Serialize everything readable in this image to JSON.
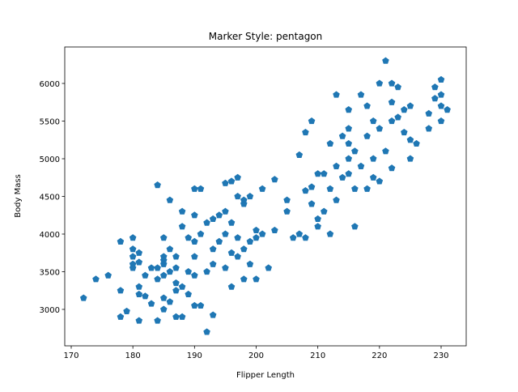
{
  "chart_data": {
    "type": "scatter",
    "title": "Marker Style: pentagon",
    "xlabel": "Flipper Length",
    "ylabel": "Body Mass",
    "marker": "pentagon",
    "color": "#1f77b4",
    "xlim": [
      168.95,
      234.07
    ],
    "ylim": [
      2516,
      6484
    ],
    "xticks": [
      170,
      180,
      190,
      200,
      210,
      220,
      230
    ],
    "yticks": [
      3000,
      3500,
      4000,
      4500,
      5000,
      5500,
      6000
    ],
    "x": [
      172,
      174,
      176,
      178,
      178,
      178,
      179,
      180,
      180,
      180,
      180,
      180,
      181,
      181,
      181,
      181,
      181,
      182,
      182,
      183,
      183,
      184,
      184,
      184,
      184,
      185,
      185,
      185,
      185,
      185,
      185,
      185,
      186,
      186,
      186,
      186,
      187,
      187,
      187,
      187,
      187,
      188,
      188,
      188,
      188,
      189,
      189,
      189,
      190,
      190,
      190,
      190,
      190,
      190,
      191,
      191,
      191,
      192,
      192,
      192,
      193,
      193,
      193,
      193,
      194,
      194,
      195,
      195,
      195,
      195,
      196,
      196,
      196,
      196,
      197,
      197,
      197,
      197,
      198,
      198,
      198,
      198,
      199,
      199,
      199,
      200,
      200,
      200,
      201,
      201,
      202,
      203,
      203,
      205,
      205,
      206,
      207,
      207,
      208,
      208,
      208,
      209,
      209,
      209,
      210,
      210,
      210,
      211,
      211,
      212,
      212,
      212,
      213,
      213,
      213,
      214,
      214,
      215,
      215,
      215,
      215,
      215,
      216,
      216,
      216,
      217,
      217,
      218,
      218,
      218,
      219,
      219,
      219,
      220,
      220,
      220,
      221,
      221,
      222,
      222,
      222,
      222,
      223,
      223,
      224,
      224,
      225,
      225,
      225,
      226,
      228,
      228,
      229,
      229,
      230,
      230,
      230,
      230,
      231
    ],
    "values": [
      3150,
      3400,
      3450,
      3250,
      3900,
      2900,
      2975,
      3800,
      3700,
      3600,
      3550,
      3950,
      3200,
      3625,
      3300,
      2850,
      3750,
      3175,
      3450,
      3550,
      3075,
      4650,
      3550,
      2850,
      3400,
      3700,
      3950,
      3600,
      3150,
      3000,
      3450,
      3650,
      4450,
      3800,
      3500,
      3100,
      3250,
      3550,
      3350,
      2900,
      3700,
      2900,
      3300,
      4300,
      4100,
      3950,
      3500,
      3200,
      4600,
      4250,
      3900,
      3450,
      3050,
      3700,
      4600,
      4000,
      3050,
      2700,
      4150,
      3500,
      4200,
      3800,
      2925,
      3600,
      4250,
      3900,
      4675,
      4300,
      4000,
      3550,
      4700,
      4150,
      3750,
      3300,
      4750,
      4500,
      3950,
      3700,
      4400,
      4450,
      3800,
      3400,
      4500,
      3900,
      3600,
      4050,
      3950,
      3400,
      4000,
      4600,
      3550,
      4725,
      4050,
      4450,
      4300,
      3950,
      5050,
      4000,
      5350,
      3950,
      4575,
      4625,
      5500,
      4400,
      4800,
      4200,
      4100,
      4300,
      4800,
      5200,
      4600,
      4000,
      5850,
      4900,
      4450,
      5300,
      4750,
      5650,
      5200,
      5000,
      4800,
      5400,
      5100,
      4600,
      4100,
      5850,
      4900,
      5700,
      5300,
      4600,
      5500,
      4750,
      5000,
      6000,
      5400,
      4700,
      6300,
      5100,
      6000,
      5750,
      5500,
      4875,
      5950,
      5550,
      5650,
      5350,
      5700,
      5250,
      5000,
      5200,
      5600,
      5400,
      5950,
      5800,
      6050,
      5850,
      5700,
      5500,
      5650
    ]
  }
}
